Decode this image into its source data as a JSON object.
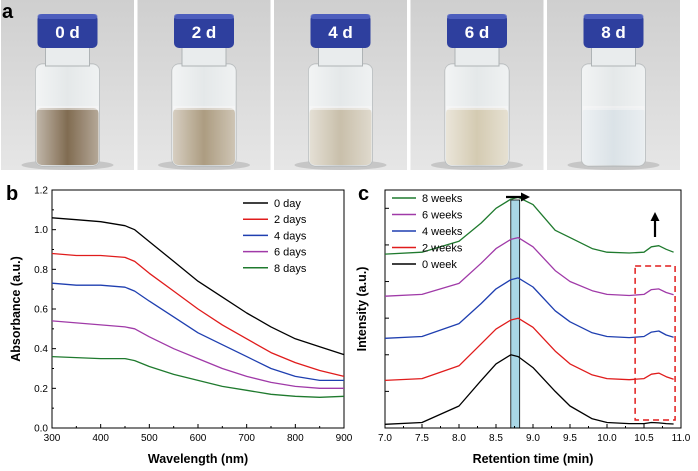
{
  "panel_a": {
    "letter": "a",
    "vials": [
      {
        "label": "0 d",
        "liquid_color": "#7a6448"
      },
      {
        "label": "2 d",
        "liquid_color": "#a8977a"
      },
      {
        "label": "4 d",
        "liquid_color": "#c6bca6"
      },
      {
        "label": "6 d",
        "liquid_color": "#d2c8ae"
      },
      {
        "label": "8 d",
        "liquid_color": "#d9e1e6"
      }
    ],
    "cap_color": "#2e3f9e"
  },
  "chart_data": [
    {
      "panel": "b",
      "type": "line",
      "xlabel": "Wavelength (nm)",
      "ylabel": "Absorbance (a.u.)",
      "xlim": [
        300,
        900
      ],
      "ylim": [
        0.0,
        1.2
      ],
      "xticks": [
        "300",
        "400",
        "500",
        "600",
        "700",
        "800",
        "900"
      ],
      "yticks": [
        "0.0",
        "0.2",
        "0.4",
        "0.6",
        "0.8",
        "1.0",
        "1.2"
      ],
      "x": [
        300,
        350,
        400,
        450,
        470,
        500,
        550,
        600,
        650,
        700,
        750,
        800,
        850,
        900
      ],
      "series": [
        {
          "name": "0 day",
          "color": "#000000",
          "values": [
            1.06,
            1.05,
            1.04,
            1.02,
            1.0,
            0.94,
            0.84,
            0.74,
            0.66,
            0.58,
            0.51,
            0.45,
            0.41,
            0.37
          ]
        },
        {
          "name": "2 days",
          "color": "#e01c1c",
          "values": [
            0.88,
            0.87,
            0.87,
            0.86,
            0.84,
            0.78,
            0.69,
            0.6,
            0.52,
            0.45,
            0.38,
            0.33,
            0.29,
            0.26
          ]
        },
        {
          "name": "4 days",
          "color": "#1f3fb0",
          "values": [
            0.73,
            0.72,
            0.72,
            0.71,
            0.69,
            0.64,
            0.56,
            0.48,
            0.42,
            0.36,
            0.3,
            0.26,
            0.24,
            0.24
          ]
        },
        {
          "name": "6 days",
          "color": "#a03aa8",
          "values": [
            0.54,
            0.53,
            0.52,
            0.51,
            0.5,
            0.46,
            0.4,
            0.35,
            0.3,
            0.26,
            0.23,
            0.21,
            0.2,
            0.2
          ]
        },
        {
          "name": "8 days",
          "color": "#1f7a2e",
          "values": [
            0.36,
            0.355,
            0.35,
            0.35,
            0.34,
            0.31,
            0.27,
            0.24,
            0.21,
            0.19,
            0.17,
            0.16,
            0.155,
            0.16
          ]
        }
      ],
      "legend_position": "top-right",
      "grid": false
    },
    {
      "panel": "c",
      "type": "line",
      "xlabel": "Retention time (min)",
      "ylabel": "Intensity (a.u.)",
      "xlim": [
        7.0,
        11.0
      ],
      "xticks": [
        "7.0",
        "7.5",
        "8.0",
        "8.5",
        "9.0",
        "9.5",
        "10.0",
        "10.5",
        "11.0"
      ],
      "ylim": [
        0,
        6.5
      ],
      "y_tick_labels_shown": false,
      "x": [
        7.0,
        7.5,
        8.0,
        8.3,
        8.5,
        8.7,
        8.8,
        9.0,
        9.3,
        9.5,
        9.8,
        10.0,
        10.3,
        10.5,
        10.6,
        10.7,
        10.8,
        10.9
      ],
      "series": [
        {
          "name": "8 weeks",
          "color": "#1f7a2e",
          "values": [
            4.75,
            4.8,
            5.1,
            5.6,
            6.0,
            6.25,
            6.3,
            6.1,
            5.4,
            5.2,
            4.9,
            4.8,
            4.78,
            4.8,
            4.95,
            4.98,
            4.88,
            4.8
          ]
        },
        {
          "name": "6 weeks",
          "color": "#a03aa8",
          "values": [
            3.6,
            3.65,
            3.95,
            4.5,
            4.9,
            5.15,
            5.2,
            4.95,
            4.3,
            4.0,
            3.75,
            3.65,
            3.62,
            3.65,
            3.78,
            3.8,
            3.7,
            3.64
          ]
        },
        {
          "name": "4 weeks",
          "color": "#1f3fb0",
          "values": [
            2.45,
            2.5,
            2.85,
            3.4,
            3.8,
            4.05,
            4.1,
            3.85,
            3.2,
            2.9,
            2.6,
            2.5,
            2.47,
            2.5,
            2.62,
            2.65,
            2.54,
            2.48
          ]
        },
        {
          "name": "2 weeks",
          "color": "#e01c1c",
          "values": [
            1.3,
            1.35,
            1.7,
            2.3,
            2.7,
            2.95,
            3.0,
            2.75,
            2.1,
            1.75,
            1.45,
            1.35,
            1.32,
            1.35,
            1.47,
            1.5,
            1.4,
            1.33
          ]
        },
        {
          "name": "0 week",
          "color": "#000000",
          "values": [
            0.1,
            0.15,
            0.6,
            1.3,
            1.75,
            2.0,
            1.95,
            1.65,
            1.0,
            0.6,
            0.25,
            0.15,
            0.12,
            0.12,
            0.15,
            0.14,
            0.12,
            0.11
          ]
        }
      ],
      "legend_position": "top-left",
      "grid": false,
      "annotations": {
        "highlight_band_x": [
          8.7,
          8.82
        ],
        "highlight_band_color": "#a9d7e6",
        "dashed_box_x": [
          10.38,
          10.92
        ],
        "dashed_box_color": "#e01c1c"
      }
    }
  ]
}
